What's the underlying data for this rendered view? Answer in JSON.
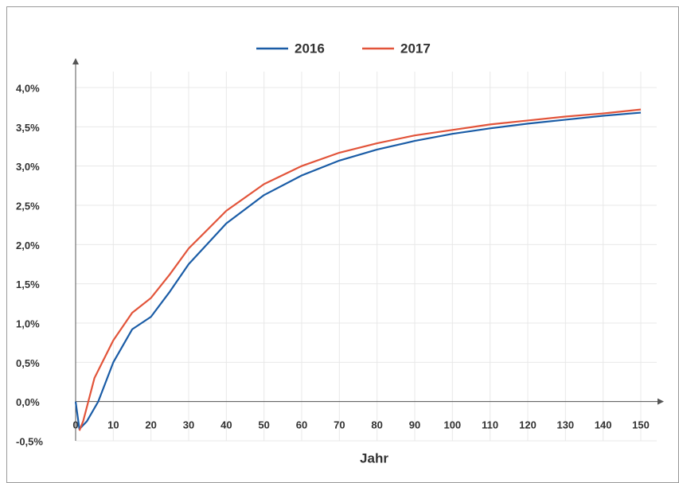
{
  "chart_data": {
    "type": "line",
    "xlabel": "Jahr",
    "xlim": [
      0,
      150
    ],
    "xticks": [
      0,
      10,
      20,
      30,
      40,
      50,
      60,
      70,
      80,
      90,
      100,
      110,
      120,
      130,
      140,
      150
    ],
    "ylim": [
      -0.5,
      4.0
    ],
    "yticks": [
      {
        "value": -0.5,
        "label": "-0,5%"
      },
      {
        "value": 0,
        "label": "0,0%"
      },
      {
        "value": 0.5,
        "label": "0,5%"
      },
      {
        "value": 1,
        "label": "1,0%"
      },
      {
        "value": 1.5,
        "label": "1,5%"
      },
      {
        "value": 2,
        "label": "2,0%"
      },
      {
        "value": 2.5,
        "label": "2,5%"
      },
      {
        "value": 3,
        "label": "3,0%"
      },
      {
        "value": 3.5,
        "label": "3,5%"
      },
      {
        "value": 4,
        "label": "4,0%"
      }
    ],
    "grid": true,
    "legend": "top",
    "series": [
      {
        "name": "2016",
        "color": "#1a5ca6",
        "x": [
          0,
          1,
          3,
          6,
          10,
          15,
          20,
          25,
          30,
          40,
          50,
          60,
          70,
          80,
          90,
          100,
          110,
          120,
          130,
          140,
          150
        ],
        "values": [
          0.0,
          -0.35,
          -0.25,
          0.0,
          0.5,
          0.92,
          1.08,
          1.4,
          1.75,
          2.27,
          2.63,
          2.88,
          3.07,
          3.21,
          3.32,
          3.41,
          3.48,
          3.54,
          3.59,
          3.64,
          3.68
        ]
      },
      {
        "name": "2017",
        "color": "#e2543a",
        "x": [
          1,
          2,
          5,
          10,
          15,
          20,
          25,
          30,
          40,
          50,
          60,
          70,
          80,
          90,
          100,
          110,
          120,
          130,
          140,
          150
        ],
        "values": [
          -0.37,
          -0.25,
          0.3,
          0.78,
          1.13,
          1.32,
          1.62,
          1.95,
          2.43,
          2.77,
          3.0,
          3.17,
          3.29,
          3.39,
          3.46,
          3.53,
          3.58,
          3.63,
          3.67,
          3.72
        ]
      }
    ]
  }
}
